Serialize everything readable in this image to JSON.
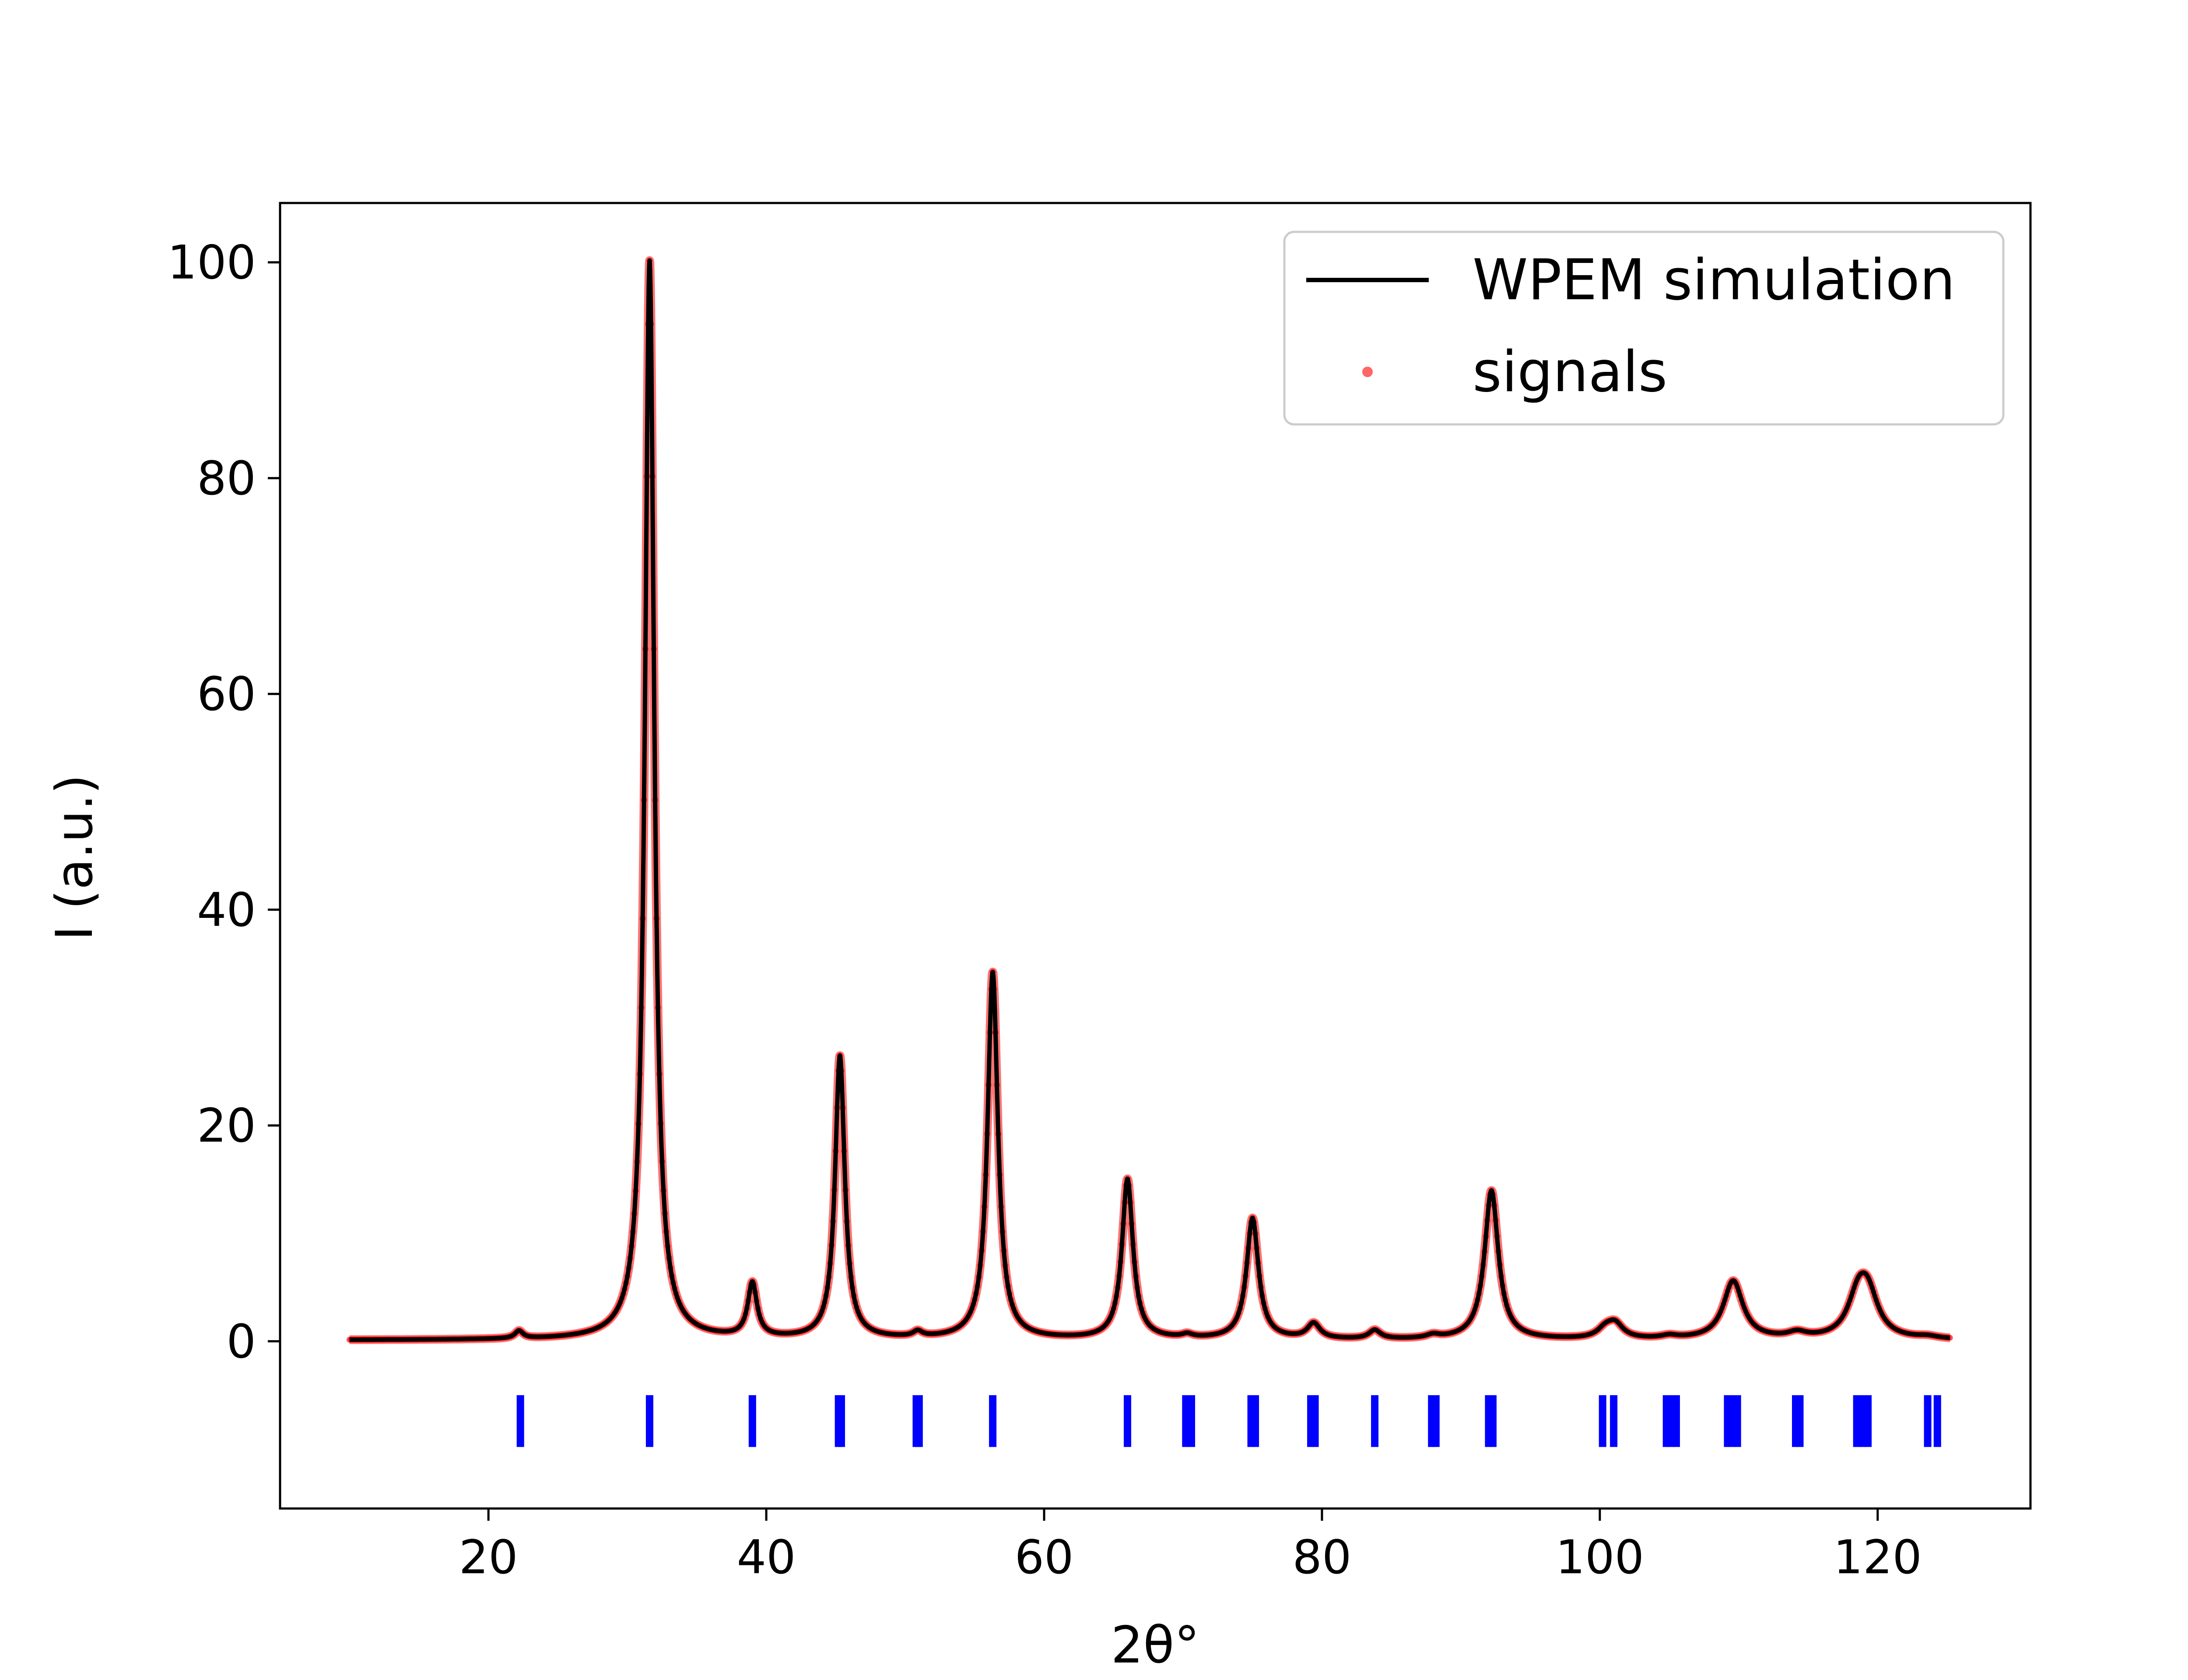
{
  "chart_data": {
    "type": "line",
    "title": "",
    "xlabel": "2θ°",
    "ylabel": "I (a.u.)",
    "xlim": [
      5,
      131
    ],
    "ylim": [
      -15.5,
      105.5
    ],
    "x_ticks": [
      "20",
      "40",
      "60",
      "80",
      "100",
      "120"
    ],
    "y_ticks": [
      "0",
      "20",
      "40",
      "60",
      "80",
      "100"
    ],
    "grid": false,
    "legend_position": "top-right",
    "baseline": 0.1,
    "x_range": [
      10,
      125.2
    ],
    "peaks": [
      {
        "x": 22.2,
        "y": 0.7,
        "w": 0.35
      },
      {
        "x": 31.6,
        "y": 100.0,
        "w": 0.4
      },
      {
        "x": 39.0,
        "y": 5.0,
        "w": 0.4
      },
      {
        "x": 45.3,
        "y": 26.2,
        "w": 0.42
      },
      {
        "x": 50.9,
        "y": 0.5,
        "w": 0.4
      },
      {
        "x": 56.3,
        "y": 34.0,
        "w": 0.45
      },
      {
        "x": 66.0,
        "y": 14.8,
        "w": 0.48
      },
      {
        "x": 70.3,
        "y": 0.3,
        "w": 0.45
      },
      {
        "x": 75.0,
        "y": 11.2,
        "w": 0.52
      },
      {
        "x": 79.4,
        "y": 1.4,
        "w": 0.55
      },
      {
        "x": 83.8,
        "y": 0.8,
        "w": 0.5
      },
      {
        "x": 88.0,
        "y": 0.3,
        "w": 0.55
      },
      {
        "x": 92.2,
        "y": 13.8,
        "w": 0.6
      },
      {
        "x": 100.4,
        "y": 0.8,
        "w": 0.7
      },
      {
        "x": 101.1,
        "y": 1.3,
        "w": 0.7
      },
      {
        "x": 105.0,
        "y": 0.25,
        "w": 0.7
      },
      {
        "x": 109.6,
        "y": 5.4,
        "w": 0.85
      },
      {
        "x": 114.2,
        "y": 0.5,
        "w": 0.8
      },
      {
        "x": 118.6,
        "y": 3.5,
        "w": 0.9
      },
      {
        "x": 119.3,
        "y": 3.6,
        "w": 0.9
      },
      {
        "x": 123.6,
        "y": 0.2,
        "w": 0.9
      }
    ],
    "reflection_markers": {
      "y_top": -5.0,
      "y_bottom": -9.8,
      "color": "#0000ff",
      "x": [
        22.3,
        31.6,
        39.0,
        45.2,
        45.4,
        50.8,
        51.0,
        56.3,
        66.0,
        70.2,
        70.6,
        74.9,
        75.2,
        79.2,
        79.5,
        83.8,
        87.9,
        88.2,
        92.0,
        92.3,
        100.2,
        101.0,
        104.8,
        105.1,
        105.5,
        109.2,
        109.5,
        109.9,
        114.1,
        114.4,
        118.5,
        118.9,
        119.3,
        123.6,
        124.3
      ]
    },
    "series": [
      {
        "name": "WPEM simulation",
        "style": "line",
        "color": "#000000"
      },
      {
        "name": "signals",
        "style": "scatter",
        "color": "#ff0000"
      }
    ]
  }
}
